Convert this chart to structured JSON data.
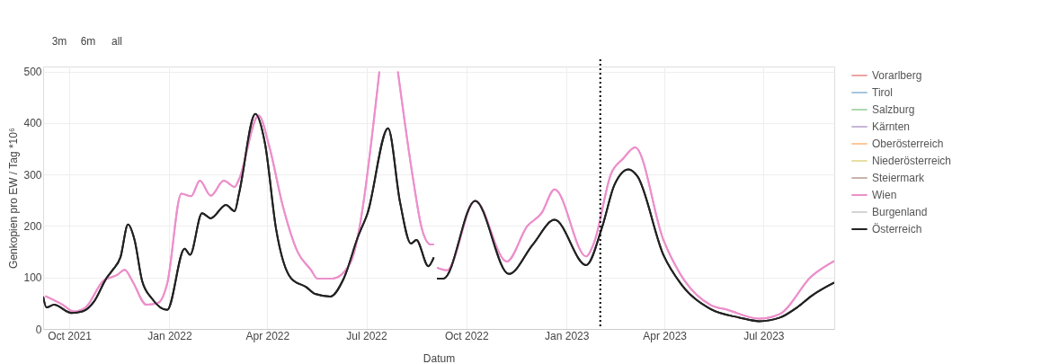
{
  "chart_data": {
    "type": "line",
    "xlabel": "Datum",
    "ylabel": "Genkopien pro EW / Tag *10⁶",
    "xlim": [
      "2021-09-07",
      "2023-09-04"
    ],
    "ylim": [
      0,
      510
    ],
    "xticks": [
      {
        "value": "2021-10-01",
        "label": "Oct 2021"
      },
      {
        "value": "2022-01-01",
        "label": "Jan 2022"
      },
      {
        "value": "2022-04-01",
        "label": "Apr 2022"
      },
      {
        "value": "2022-07-01",
        "label": "Jul 2022"
      },
      {
        "value": "2022-10-01",
        "label": "Oct 2022"
      },
      {
        "value": "2023-01-01",
        "label": "Jan 2023"
      },
      {
        "value": "2023-04-01",
        "label": "Apr 2023"
      },
      {
        "value": "2023-07-01",
        "label": "Jul 2023"
      }
    ],
    "yticks": [
      0,
      100,
      200,
      300,
      400,
      500
    ],
    "grid": true,
    "legend": "right",
    "line_style": "solid",
    "marker": "none",
    "annotations": [
      "3m",
      "6m",
      "all"
    ],
    "ref_lines": [
      {
        "axis": "x",
        "value": "2023-02-01",
        "color": "#000000",
        "line_style": "dotted"
      }
    ],
    "series": [
      {
        "name": "Vorarlberg",
        "color": "#eea3a3"
      },
      {
        "name": "Tirol",
        "color": "#a3c6de"
      },
      {
        "name": "Salzburg",
        "color": "#acd9ac"
      },
      {
        "name": "Kärnten",
        "color": "#c5b6d6"
      },
      {
        "name": "Oberösterreich",
        "color": "#fcc99a"
      },
      {
        "name": "Niederösterreich",
        "color": "#e6dea2"
      },
      {
        "name": "Steiermark",
        "color": "#c9b2ab"
      },
      {
        "name": "Wien",
        "color": "#ec8fcb",
        "x": [
          "2021-09-09",
          "2021-09-25",
          "2021-10-05",
          "2021-10-16",
          "2021-11-01",
          "2021-11-14",
          "2021-11-21",
          "2021-11-28",
          "2021-12-11",
          "2021-12-22",
          "2021-12-30",
          "2022-01-12",
          "2022-01-21",
          "2022-01-29",
          "2022-02-08",
          "2022-02-20",
          "2022-03-02",
          "2022-03-06",
          "2022-03-24",
          "2022-04-03",
          "2022-04-15",
          "2022-04-29",
          "2022-05-11",
          "2022-05-17",
          "2022-05-31",
          "2022-06-16",
          "2022-07-13",
          "2022-07-24",
          "2022-07-30",
          "2022-08-13",
          "2022-08-21",
          "2022-08-29",
          "2022-09-01",
          "2022-09-02",
          "2022-09-04",
          "2022-09-13",
          "2022-10-09",
          "2022-11-07",
          "2022-11-26",
          "2022-12-09",
          "2022-12-21",
          "2023-01-19",
          "2023-01-26",
          "2023-02-11",
          "2023-02-22",
          "2023-03-05",
          "2023-03-31",
          "2023-04-16",
          "2023-05-13",
          "2023-05-29",
          "2023-06-27",
          "2023-07-16",
          "2023-08-14",
          "2023-09-04"
        ],
        "values": [
          64,
          47,
          34,
          42,
          93,
          105,
          115,
          93,
          47,
          51,
          88,
          263,
          258,
          288,
          259,
          288,
          276,
          291,
          415,
          353,
          241,
          149,
          115,
          98,
          98,
          127,
          500,
          null,
          500,
          291,
          195,
          164,
          164,
          null,
          119,
          114,
          249,
          131,
          200,
          225,
          271,
          141,
          166,
          302,
          331,
          353,
          173,
          105,
          47,
          37,
          20,
          29,
          102,
          132
        ]
      },
      {
        "name": "Burgenland",
        "color": "#d4d4d4"
      },
      {
        "name": "Österreich",
        "color": "#222222",
        "x": [
          "2021-09-07",
          "2021-09-10",
          "2021-09-17",
          "2021-10-03",
          "2021-10-13",
          "2021-10-24",
          "2021-11-04",
          "2021-11-10",
          "2021-11-17",
          "2021-11-24",
          "2021-11-30",
          "2021-12-07",
          "2021-12-16",
          "2021-12-30",
          "2022-01-15",
          "2022-01-20",
          "2022-01-31",
          "2022-02-08",
          "2022-02-22",
          "2022-03-02",
          "2022-03-06",
          "2022-03-21",
          "2022-03-30",
          "2022-04-09",
          "2022-04-23",
          "2022-05-07",
          "2022-05-15",
          "2022-05-29",
          "2022-06-10",
          "2022-06-24",
          "2022-07-02",
          "2022-07-21",
          "2022-08-01",
          "2022-08-11",
          "2022-08-16",
          "2022-08-27",
          "2022-09-01",
          "2022-09-02",
          "2022-09-04",
          "2022-09-10",
          "2022-10-09",
          "2022-11-09",
          "2022-12-01",
          "2022-12-21",
          "2023-01-19",
          "2023-02-03",
          "2023-02-14",
          "2023-02-27",
          "2023-03-07",
          "2023-03-31",
          "2023-04-16",
          "2023-05-13",
          "2023-06-09",
          "2023-06-27",
          "2023-07-16",
          "2023-08-01",
          "2023-08-14",
          "2023-09-04"
        ],
        "values": [
          63,
          42,
          47,
          31,
          34,
          54,
          98,
          115,
          139,
          203,
          173,
          93,
          59,
          37,
          156,
          144,
          225,
          215,
          241,
          229,
          263,
          418,
          359,
          195,
          98,
          81,
          68,
          63,
          97,
          183,
          224,
          390,
          246,
          166,
          173,
          122,
          139,
          null,
          98,
          98,
          249,
          107,
          164,
          212,
          124,
          200,
          280,
          310,
          297,
          144,
          88,
          39,
          22,
          15,
          22,
          42,
          64,
          90
        ]
      }
    ]
  }
}
